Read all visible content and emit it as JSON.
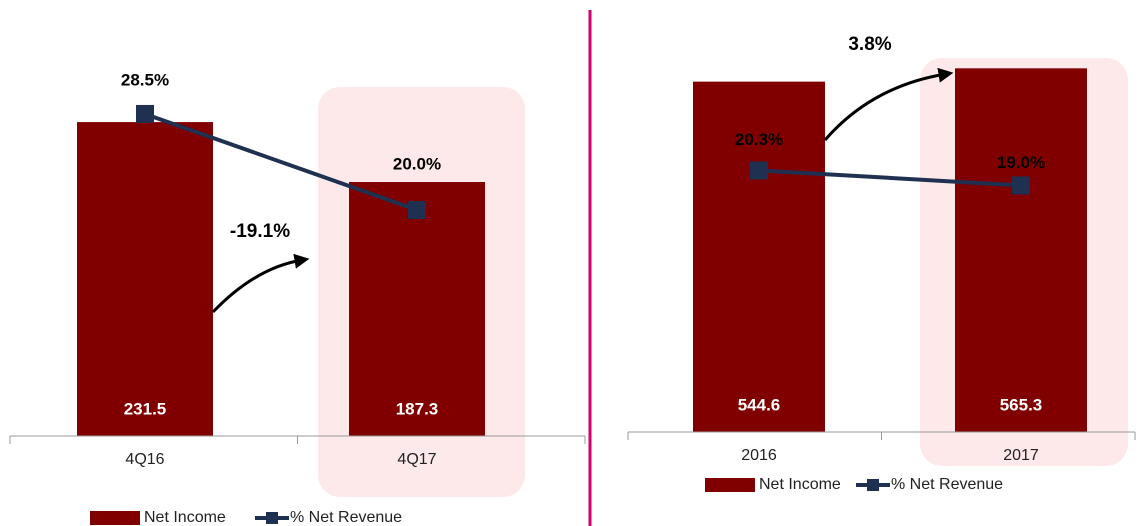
{
  "chart_data": [
    {
      "type": "bar",
      "categories": [
        "4Q16",
        "4Q17"
      ],
      "series": [
        {
          "name": "Net Income",
          "type": "bar",
          "color": "#800000",
          "values": [
            231.5,
            187.3
          ]
        },
        {
          "name": "% Net Revenue",
          "type": "line",
          "axis": "y2",
          "color": "#1f3050",
          "values": [
            28.5,
            20.0
          ],
          "value_labels": [
            "28.5%",
            "20.0%"
          ]
        }
      ],
      "ylim": [
        0,
        250
      ],
      "y2lim": [
        0,
        30
      ],
      "annotation": "-19.1%"
    },
    {
      "type": "bar",
      "categories": [
        "2016",
        "2017"
      ],
      "series": [
        {
          "name": "Net Income",
          "type": "bar",
          "color": "#800000",
          "values": [
            544.6,
            565.3
          ]
        },
        {
          "name": "% Net Revenue",
          "type": "line",
          "axis": "y2",
          "color": "#1f3050",
          "values": [
            20.3,
            19.0
          ],
          "value_labels": [
            "20.3%",
            "19.0%"
          ]
        }
      ],
      "ylim": [
        0,
        600
      ],
      "y2lim": [
        -2.4,
        31.1
      ],
      "annotation": "3.8%"
    }
  ]
}
